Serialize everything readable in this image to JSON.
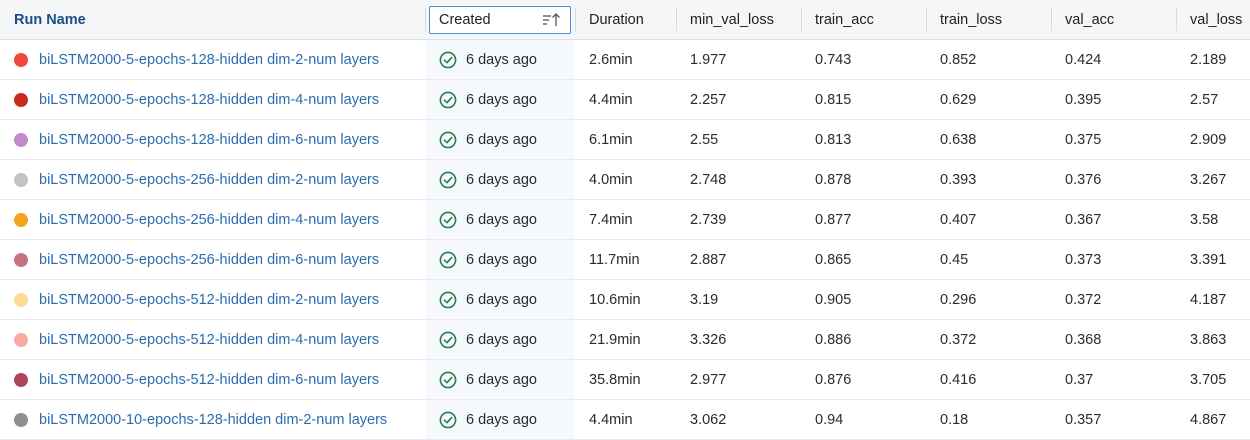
{
  "columns": {
    "run_name": "Run Name",
    "created": "Created",
    "duration": "Duration",
    "min_val_loss": "min_val_loss",
    "train_acc": "train_acc",
    "train_loss": "train_loss",
    "val_acc": "val_acc",
    "val_loss": "val_loss"
  },
  "icons": {
    "sort": "sort-ascending-icon",
    "status": "check-circle-icon"
  },
  "colors": {
    "status_ok": "#2e7d4f",
    "link": "#2b6cb0"
  },
  "rows": [
    {
      "name": "biLSTM2000-5-epochs-128-hidden dim-2-num layers",
      "color": "#f0483e",
      "created": "6 days ago",
      "duration": "2.6min",
      "min_val_loss": "1.977",
      "train_acc": "0.743",
      "train_loss": "0.852",
      "val_acc": "0.424",
      "val_loss": "2.189"
    },
    {
      "name": "biLSTM2000-5-epochs-128-hidden dim-4-num layers",
      "color": "#cc2a1f",
      "created": "6 days ago",
      "duration": "4.4min",
      "min_val_loss": "2.257",
      "train_acc": "0.815",
      "train_loss": "0.629",
      "val_acc": "0.395",
      "val_loss": "2.57"
    },
    {
      "name": "biLSTM2000-5-epochs-128-hidden dim-6-num layers",
      "color": "#c08ccc",
      "created": "6 days ago",
      "duration": "6.1min",
      "min_val_loss": "2.55",
      "train_acc": "0.813",
      "train_loss": "0.638",
      "val_acc": "0.375",
      "val_loss": "2.909"
    },
    {
      "name": "biLSTM2000-5-epochs-256-hidden dim-2-num layers",
      "color": "#c4c4c4",
      "created": "6 days ago",
      "duration": "4.0min",
      "min_val_loss": "2.748",
      "train_acc": "0.878",
      "train_loss": "0.393",
      "val_acc": "0.376",
      "val_loss": "3.267"
    },
    {
      "name": "biLSTM2000-5-epochs-256-hidden dim-4-num layers",
      "color": "#f5a31a",
      "created": "6 days ago",
      "duration": "7.4min",
      "min_val_loss": "2.739",
      "train_acc": "0.877",
      "train_loss": "0.407",
      "val_acc": "0.367",
      "val_loss": "3.58"
    },
    {
      "name": "biLSTM2000-5-epochs-256-hidden dim-6-num layers",
      "color": "#c57381",
      "created": "6 days ago",
      "duration": "11.7min",
      "min_val_loss": "2.887",
      "train_acc": "0.865",
      "train_loss": "0.45",
      "val_acc": "0.373",
      "val_loss": "3.391"
    },
    {
      "name": "biLSTM2000-5-epochs-512-hidden dim-2-num layers",
      "color": "#fddb94",
      "created": "6 days ago",
      "duration": "10.6min",
      "min_val_loss": "3.19",
      "train_acc": "0.905",
      "train_loss": "0.296",
      "val_acc": "0.372",
      "val_loss": "4.187"
    },
    {
      "name": "biLSTM2000-5-epochs-512-hidden dim-4-num layers",
      "color": "#f7a9a4",
      "created": "6 days ago",
      "duration": "21.9min",
      "min_val_loss": "3.326",
      "train_acc": "0.886",
      "train_loss": "0.372",
      "val_acc": "0.368",
      "val_loss": "3.863"
    },
    {
      "name": "biLSTM2000-5-epochs-512-hidden dim-6-num layers",
      "color": "#b0455a",
      "created": "6 days ago",
      "duration": "35.8min",
      "min_val_loss": "2.977",
      "train_acc": "0.876",
      "train_loss": "0.416",
      "val_acc": "0.37",
      "val_loss": "3.705"
    },
    {
      "name": "biLSTM2000-10-epochs-128-hidden dim-2-num layers",
      "color": "#8f8f8f",
      "created": "6 days ago",
      "duration": "4.4min",
      "min_val_loss": "3.062",
      "train_acc": "0.94",
      "train_loss": "0.18",
      "val_acc": "0.357",
      "val_loss": "4.867"
    }
  ]
}
